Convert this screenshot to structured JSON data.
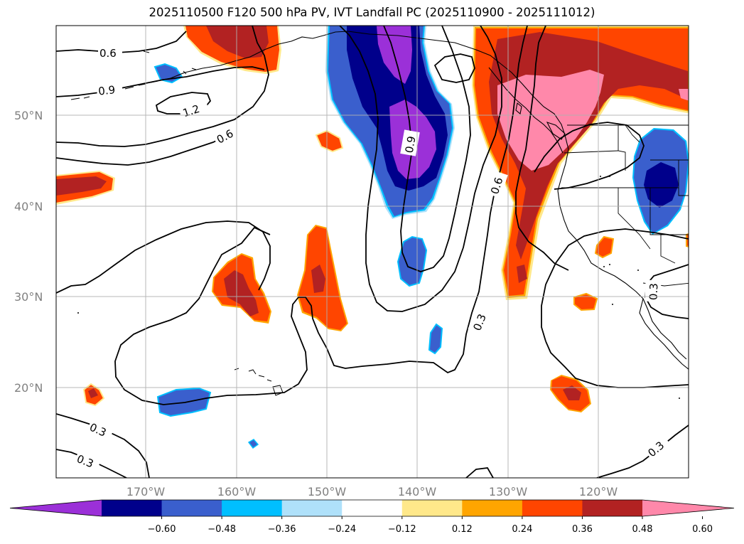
{
  "title": "2025110500 F120 500 hPa PV, IVT Landfall PC (2025110900 - 2025111012)",
  "latitude_labels": [
    "50°N",
    "40°N",
    "30°N",
    "20°N"
  ],
  "longitude_labels": [
    "170°W",
    "160°W",
    "150°W",
    "140°W",
    "130°W",
    "120°W"
  ],
  "colorbar": {
    "tick_labels": [
      "−0.60",
      "−0.48",
      "−0.36",
      "−0.24",
      "−0.12",
      "0.12",
      "0.24",
      "0.36",
      "0.48",
      "0.60"
    ],
    "colors": [
      "#9b30d8",
      "#00008b",
      "#3a5fcd",
      "#00bfff",
      "#afe1fa",
      "#ffffff",
      "#ffe88a",
      "#ffa500",
      "#ff4500",
      "#b22222",
      "#ff88aa"
    ]
  },
  "contour_labels": [
    "0.6",
    "0.9",
    "1.2",
    "0.6",
    "0.9",
    "0.6",
    "0.3",
    "0.3",
    "0.3",
    "0.3",
    "0.3"
  ],
  "colors": {
    "pink": "#ff88aa",
    "dark_red": "#b22222",
    "red_orange": "#ff4500",
    "orange": "#ffa500",
    "yellow": "#ffe88a",
    "light_blue": "#afe1fa",
    "sky_blue": "#00bfff",
    "royal_blue": "#3a5fcd",
    "navy": "#00008b",
    "purple": "#9b30d8"
  }
}
